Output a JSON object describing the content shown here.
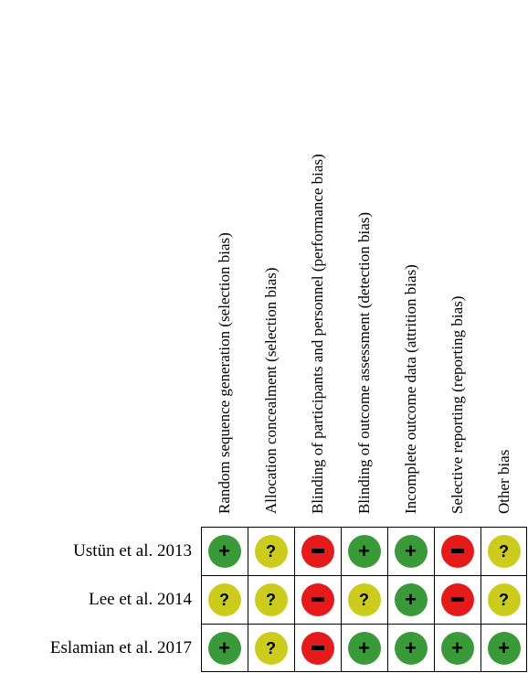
{
  "domains": [
    "Random sequence generation (selection bias)",
    "Allocation concealment (selection bias)",
    "Blinding of participants and personnel (performance bias)",
    "Blinding of outcome assessment (detection bias)",
    "Incomplete outcome data (attrition bias)",
    "Selective reporting (reporting bias)",
    "Other bias"
  ],
  "studies": [
    {
      "name": "Ustün et al. 2013",
      "judgements": [
        "low",
        "unclear",
        "high",
        "low",
        "low",
        "high",
        "unclear"
      ]
    },
    {
      "name": "Lee et al. 2014",
      "judgements": [
        "unclear",
        "unclear",
        "high",
        "unclear",
        "low",
        "high",
        "unclear"
      ]
    },
    {
      "name": "Eslamian et al. 2017",
      "judgements": [
        "low",
        "unclear",
        "high",
        "low",
        "low",
        "low",
        "low"
      ]
    }
  ],
  "symbols": {
    "low": "+",
    "unclear": "?",
    "high": "−"
  },
  "colors": {
    "low": "#3a9a3a",
    "unclear": "#cccc1e",
    "high": "#e51b1b",
    "grid": "#000000"
  }
}
